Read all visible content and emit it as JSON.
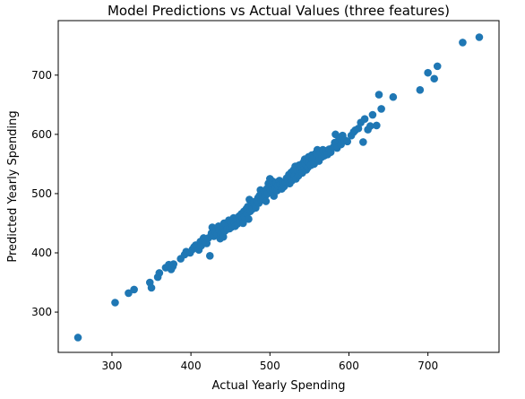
{
  "chart_data": {
    "type": "scatter",
    "title": "Model Predictions vs Actual Values (three features)",
    "xlabel": "Actual Yearly Spending",
    "ylabel": "Predicted Yearly Spending",
    "xlim": [
      232,
      790
    ],
    "ylim": [
      232,
      792
    ],
    "xticks": [
      300,
      400,
      500,
      600,
      700
    ],
    "yticks": [
      300,
      400,
      500,
      600,
      700
    ],
    "grid": false,
    "marker_color": "#1f77b4",
    "points": [
      [
        257,
        257
      ],
      [
        304,
        316
      ],
      [
        321,
        332
      ],
      [
        328,
        338
      ],
      [
        348,
        350
      ],
      [
        350,
        341
      ],
      [
        358,
        359
      ],
      [
        360,
        366
      ],
      [
        368,
        375
      ],
      [
        372,
        380
      ],
      [
        375,
        372
      ],
      [
        377,
        377
      ],
      [
        378,
        381
      ],
      [
        387,
        390
      ],
      [
        392,
        397
      ],
      [
        394,
        402
      ],
      [
        399,
        400
      ],
      [
        402,
        406
      ],
      [
        404,
        410
      ],
      [
        406,
        413
      ],
      [
        410,
        405
      ],
      [
        412,
        419
      ],
      [
        413,
        412
      ],
      [
        416,
        425
      ],
      [
        418,
        417
      ],
      [
        420,
        416
      ],
      [
        422,
        425
      ],
      [
        424,
        395
      ],
      [
        426,
        433
      ],
      [
        427,
        443
      ],
      [
        429,
        428
      ],
      [
        431,
        436
      ],
      [
        433,
        431
      ],
      [
        435,
        445
      ],
      [
        436,
        438
      ],
      [
        437,
        424
      ],
      [
        438,
        432
      ],
      [
        440,
        442
      ],
      [
        441,
        427
      ],
      [
        442,
        450
      ],
      [
        443,
        437
      ],
      [
        445,
        447
      ],
      [
        446,
        440
      ],
      [
        448,
        455
      ],
      [
        449,
        441
      ],
      [
        451,
        452
      ],
      [
        452,
        444
      ],
      [
        454,
        459
      ],
      [
        455,
        450
      ],
      [
        456,
        445
      ],
      [
        458,
        456
      ],
      [
        459,
        449
      ],
      [
        461,
        462
      ],
      [
        462,
        455
      ],
      [
        464,
        466
      ],
      [
        465,
        459
      ],
      [
        466,
        450
      ],
      [
        467,
        470
      ],
      [
        468,
        461
      ],
      [
        470,
        474
      ],
      [
        471,
        466
      ],
      [
        472,
        478
      ],
      [
        473,
        457
      ],
      [
        474,
        490
      ],
      [
        475,
        470
      ],
      [
        477,
        482
      ],
      [
        478,
        474
      ],
      [
        480,
        486
      ],
      [
        481,
        479
      ],
      [
        482,
        476
      ],
      [
        483,
        488
      ],
      [
        485,
        493
      ],
      [
        486,
        484
      ],
      [
        487,
        497
      ],
      [
        488,
        506
      ],
      [
        489,
        489
      ],
      [
        490,
        499
      ],
      [
        491,
        492
      ],
      [
        493,
        503
      ],
      [
        494,
        496
      ],
      [
        495,
        487
      ],
      [
        496,
        508
      ],
      [
        497,
        500
      ],
      [
        498,
        517
      ],
      [
        499,
        511
      ],
      [
        500,
        525
      ],
      [
        501,
        505
      ],
      [
        502,
        514
      ],
      [
        503,
        521
      ],
      [
        504,
        508
      ],
      [
        505,
        496
      ],
      [
        506,
        516
      ],
      [
        507,
        510
      ],
      [
        508,
        519
      ],
      [
        509,
        505
      ],
      [
        510,
        513
      ],
      [
        512,
        522
      ],
      [
        513,
        515
      ],
      [
        515,
        508
      ],
      [
        516,
        518
      ],
      [
        518,
        512
      ],
      [
        520,
        520
      ],
      [
        521,
        526
      ],
      [
        523,
        524
      ],
      [
        524,
        532
      ],
      [
        525,
        517
      ],
      [
        526,
        528
      ],
      [
        527,
        536
      ],
      [
        528,
        522
      ],
      [
        530,
        540
      ],
      [
        531,
        530
      ],
      [
        532,
        546
      ],
      [
        533,
        525
      ],
      [
        535,
        538
      ],
      [
        536,
        530
      ],
      [
        537,
        548
      ],
      [
        538,
        541
      ],
      [
        540,
        544
      ],
      [
        541,
        535
      ],
      [
        542,
        552
      ],
      [
        543,
        546
      ],
      [
        544,
        558
      ],
      [
        545,
        550
      ],
      [
        546,
        540
      ],
      [
        547,
        555
      ],
      [
        548,
        544
      ],
      [
        549,
        562
      ],
      [
        550,
        553
      ],
      [
        552,
        548
      ],
      [
        553,
        565
      ],
      [
        554,
        557
      ],
      [
        555,
        560
      ],
      [
        556,
        550
      ],
      [
        558,
        568
      ],
      [
        559,
        563
      ],
      [
        560,
        574
      ],
      [
        561,
        566
      ],
      [
        562,
        555
      ],
      [
        564,
        570
      ],
      [
        566,
        562
      ],
      [
        567,
        574
      ],
      [
        569,
        564
      ],
      [
        571,
        572
      ],
      [
        573,
        566
      ],
      [
        575,
        575
      ],
      [
        577,
        570
      ],
      [
        580,
        578
      ],
      [
        582,
        586
      ],
      [
        583,
        600
      ],
      [
        585,
        577
      ],
      [
        587,
        590
      ],
      [
        589,
        594
      ],
      [
        590,
        583
      ],
      [
        592,
        598
      ],
      [
        595,
        590
      ],
      [
        598,
        588
      ],
      [
        603,
        598
      ],
      [
        606,
        604
      ],
      [
        608,
        607
      ],
      [
        612,
        610
      ],
      [
        615,
        620
      ],
      [
        618,
        587
      ],
      [
        620,
        626
      ],
      [
        624,
        608
      ],
      [
        627,
        614
      ],
      [
        630,
        633
      ],
      [
        635,
        615
      ],
      [
        638,
        667
      ],
      [
        641,
        643
      ],
      [
        656,
        663
      ],
      [
        690,
        675
      ],
      [
        700,
        704
      ],
      [
        708,
        694
      ],
      [
        712,
        715
      ],
      [
        744,
        755
      ],
      [
        765,
        764
      ]
    ]
  }
}
